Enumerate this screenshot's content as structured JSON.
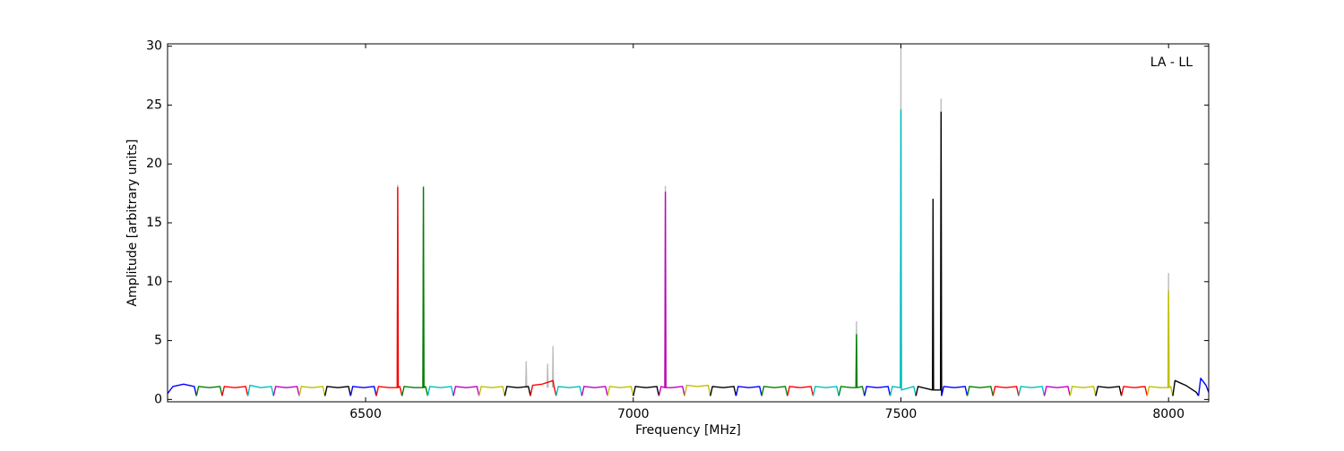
{
  "chart_data": {
    "type": "line",
    "annotation": "LA - LL",
    "x_label": "Frequency [MHz]",
    "y_label": "Amplitude [arbitrary units]",
    "xlim": [
      6130,
      8075
    ],
    "ylim": [
      -0.2,
      30.2
    ],
    "xticks": [
      6500,
      7000,
      7500,
      8000
    ],
    "yticks": [
      0,
      5,
      10,
      15,
      20,
      25,
      30
    ],
    "grid": false,
    "series": [
      {
        "color": "#bebebe",
        "x": [
          6559,
          6560,
          6561,
          6562,
          6607,
          6608,
          6609,
          6610,
          6799,
          6800,
          6801,
          6802,
          6839,
          6840,
          6841,
          6842,
          6849,
          6850,
          6851,
          6852,
          7059,
          7060,
          7061,
          7062,
          7416,
          7417,
          7418,
          7419,
          7499,
          7500,
          7501,
          7502,
          7574,
          7575,
          7576,
          7577,
          7999,
          8000,
          8001,
          8002
        ],
        "values": [
          1,
          18.2,
          1,
          null,
          1,
          18.1,
          1,
          null,
          1,
          3.2,
          1,
          null,
          1,
          3.0,
          1,
          null,
          1,
          4.5,
          1,
          null,
          1,
          18.1,
          1,
          null,
          1,
          6.6,
          1,
          null,
          1,
          30.0,
          1,
          null,
          1,
          25.5,
          1,
          null,
          1,
          10.7,
          1,
          null
        ]
      },
      {
        "color": "#0000ff",
        "x": [
          6130,
          6140,
          6160,
          6180,
          6184
        ],
        "values": [
          0.5,
          1.1,
          1.3,
          1.1,
          0.3
        ]
      },
      {
        "color": "#008000",
        "x": [
          6184,
          6188,
          6208,
          6228,
          6232
        ],
        "values": [
          0.3,
          1.1,
          1.0,
          1.1,
          0.3
        ]
      },
      {
        "color": "#ff0000",
        "x": [
          6232,
          6236,
          6256,
          6276,
          6280
        ],
        "values": [
          0.3,
          1.1,
          1.0,
          1.1,
          0.3
        ]
      },
      {
        "color": "#00bfbf",
        "x": [
          6280,
          6284,
          6304,
          6324,
          6328
        ],
        "values": [
          0.3,
          1.2,
          1.0,
          1.1,
          0.3
        ]
      },
      {
        "color": "#bf00bf",
        "x": [
          6328,
          6332,
          6352,
          6372,
          6376
        ],
        "values": [
          0.3,
          1.1,
          1.0,
          1.1,
          0.3
        ]
      },
      {
        "color": "#bfbf00",
        "x": [
          6376,
          6380,
          6400,
          6420,
          6424
        ],
        "values": [
          0.3,
          1.1,
          1.0,
          1.1,
          0.3
        ]
      },
      {
        "color": "#000000",
        "x": [
          6424,
          6428,
          6448,
          6468,
          6472
        ],
        "values": [
          0.3,
          1.1,
          1.0,
          1.1,
          0.3
        ]
      },
      {
        "color": "#0000ff",
        "x": [
          6472,
          6476,
          6496,
          6516,
          6520
        ],
        "values": [
          0.3,
          1.1,
          1.0,
          1.1,
          0.3
        ]
      },
      {
        "color": "#ff0000",
        "x": [
          6520,
          6524,
          6544,
          6559,
          6560,
          6561,
          6564,
          6568
        ],
        "values": [
          0.3,
          1.1,
          1.0,
          1.0,
          18.0,
          1.0,
          1.1,
          0.3
        ]
      },
      {
        "color": "#008000",
        "x": [
          6568,
          6572,
          6592,
          6607,
          6608,
          6609,
          6612,
          6616
        ],
        "values": [
          0.3,
          1.1,
          1.0,
          1.0,
          18.0,
          1.0,
          1.1,
          0.3
        ]
      },
      {
        "color": "#00bfbf",
        "x": [
          6616,
          6620,
          6640,
          6660,
          6664
        ],
        "values": [
          0.3,
          1.1,
          1.0,
          1.1,
          0.3
        ]
      },
      {
        "color": "#bf00bf",
        "x": [
          6664,
          6668,
          6688,
          6708,
          6712
        ],
        "values": [
          0.3,
          1.1,
          1.0,
          1.1,
          0.3
        ]
      },
      {
        "color": "#bfbf00",
        "x": [
          6712,
          6716,
          6736,
          6756,
          6760
        ],
        "values": [
          0.3,
          1.1,
          1.0,
          1.1,
          0.3
        ]
      },
      {
        "color": "#000000",
        "x": [
          6760,
          6764,
          6784,
          6804,
          6808
        ],
        "values": [
          0.3,
          1.1,
          1.0,
          1.1,
          0.3
        ]
      },
      {
        "color": "#ff0000",
        "x": [
          6808,
          6812,
          6830,
          6850,
          6852,
          6856
        ],
        "values": [
          0.3,
          1.2,
          1.3,
          1.6,
          1.1,
          0.3
        ]
      },
      {
        "color": "#00bfbf",
        "x": [
          6856,
          6860,
          6880,
          6900,
          6904
        ],
        "values": [
          0.3,
          1.1,
          1.0,
          1.1,
          0.3
        ]
      },
      {
        "color": "#bf00bf",
        "x": [
          6904,
          6908,
          6928,
          6948,
          6952
        ],
        "values": [
          0.3,
          1.1,
          1.0,
          1.1,
          0.3
        ]
      },
      {
        "color": "#bfbf00",
        "x": [
          6952,
          6956,
          6976,
          6996,
          7000
        ],
        "values": [
          0.3,
          1.1,
          1.0,
          1.1,
          0.3
        ]
      },
      {
        "color": "#000000",
        "x": [
          7000,
          7004,
          7024,
          7044,
          7048
        ],
        "values": [
          0.3,
          1.1,
          1.0,
          1.1,
          0.3
        ]
      },
      {
        "color": "#bf00bf",
        "x": [
          7048,
          7052,
          7059,
          7060,
          7061,
          7072,
          7092,
          7096
        ],
        "values": [
          0.3,
          1.1,
          1.0,
          17.6,
          1.0,
          1.0,
          1.1,
          0.3
        ]
      },
      {
        "color": "#bfbf00",
        "x": [
          7096,
          7100,
          7120,
          7140,
          7144
        ],
        "values": [
          0.3,
          1.2,
          1.1,
          1.2,
          0.3
        ]
      },
      {
        "color": "#000000",
        "x": [
          7144,
          7148,
          7168,
          7188,
          7192
        ],
        "values": [
          0.3,
          1.1,
          1.0,
          1.1,
          0.3
        ]
      },
      {
        "color": "#0000ff",
        "x": [
          7192,
          7196,
          7216,
          7236,
          7240
        ],
        "values": [
          0.3,
          1.1,
          1.0,
          1.1,
          0.3
        ]
      },
      {
        "color": "#008000",
        "x": [
          7240,
          7244,
          7264,
          7284,
          7288
        ],
        "values": [
          0.3,
          1.1,
          1.0,
          1.1,
          0.3
        ]
      },
      {
        "color": "#ff0000",
        "x": [
          7288,
          7292,
          7312,
          7332,
          7336
        ],
        "values": [
          0.3,
          1.1,
          1.0,
          1.1,
          0.3
        ]
      },
      {
        "color": "#00bfbf",
        "x": [
          7336,
          7340,
          7360,
          7380,
          7384
        ],
        "values": [
          0.3,
          1.1,
          1.0,
          1.1,
          0.3
        ]
      },
      {
        "color": "#008000",
        "x": [
          7384,
          7388,
          7408,
          7416,
          7417,
          7418,
          7428,
          7432
        ],
        "values": [
          0.3,
          1.1,
          1.0,
          1.0,
          5.5,
          1.0,
          1.1,
          0.3
        ]
      },
      {
        "color": "#0000ff",
        "x": [
          7432,
          7436,
          7456,
          7476,
          7480
        ],
        "values": [
          0.3,
          1.1,
          1.0,
          1.1,
          0.3
        ]
      },
      {
        "color": "#00bfbf",
        "x": [
          7480,
          7484,
          7499,
          7500,
          7501,
          7524,
          7528
        ],
        "values": [
          0.3,
          1.1,
          1.0,
          24.6,
          0.8,
          1.1,
          0.3
        ]
      },
      {
        "color": "#000000",
        "x": [
          7528,
          7532,
          7559,
          7560,
          7561,
          7574,
          7575,
          7576
        ],
        "values": [
          0.3,
          1.1,
          0.8,
          17.0,
          0.8,
          0.8,
          24.4,
          0.3
        ]
      },
      {
        "color": "#0000ff",
        "x": [
          7576,
          7580,
          7600,
          7620,
          7624
        ],
        "values": [
          0.3,
          1.1,
          1.0,
          1.1,
          0.3
        ]
      },
      {
        "color": "#008000",
        "x": [
          7624,
          7628,
          7648,
          7668,
          7672
        ],
        "values": [
          0.3,
          1.1,
          1.0,
          1.1,
          0.3
        ]
      },
      {
        "color": "#ff0000",
        "x": [
          7672,
          7676,
          7696,
          7716,
          7720
        ],
        "values": [
          0.3,
          1.1,
          1.0,
          1.1,
          0.3
        ]
      },
      {
        "color": "#00bfbf",
        "x": [
          7720,
          7724,
          7744,
          7764,
          7768
        ],
        "values": [
          0.3,
          1.1,
          1.0,
          1.1,
          0.3
        ]
      },
      {
        "color": "#bf00bf",
        "x": [
          7768,
          7772,
          7792,
          7812,
          7816
        ],
        "values": [
          0.3,
          1.1,
          1.0,
          1.1,
          0.3
        ]
      },
      {
        "color": "#bfbf00",
        "x": [
          7816,
          7820,
          7840,
          7860,
          7864
        ],
        "values": [
          0.3,
          1.1,
          1.0,
          1.1,
          0.3
        ]
      },
      {
        "color": "#000000",
        "x": [
          7864,
          7868,
          7888,
          7908,
          7912
        ],
        "values": [
          0.3,
          1.1,
          1.0,
          1.1,
          0.3
        ]
      },
      {
        "color": "#ff0000",
        "x": [
          7912,
          7916,
          7936,
          7956,
          7960
        ],
        "values": [
          0.3,
          1.1,
          1.0,
          1.1,
          0.3
        ]
      },
      {
        "color": "#bfbf00",
        "x": [
          7960,
          7964,
          7984,
          7999,
          8000,
          8001,
          8004,
          8008
        ],
        "values": [
          0.3,
          1.1,
          1.0,
          1.0,
          9.2,
          1.0,
          1.1,
          0.3
        ]
      },
      {
        "color": "#000000",
        "x": [
          8008,
          8012,
          8032,
          8052,
          8056
        ],
        "values": [
          0.3,
          1.6,
          1.2,
          0.6,
          0.3
        ]
      },
      {
        "color": "#0000ff",
        "x": [
          8056,
          8060,
          8070,
          8075
        ],
        "values": [
          0.3,
          1.8,
          1.2,
          0.6
        ]
      }
    ]
  }
}
